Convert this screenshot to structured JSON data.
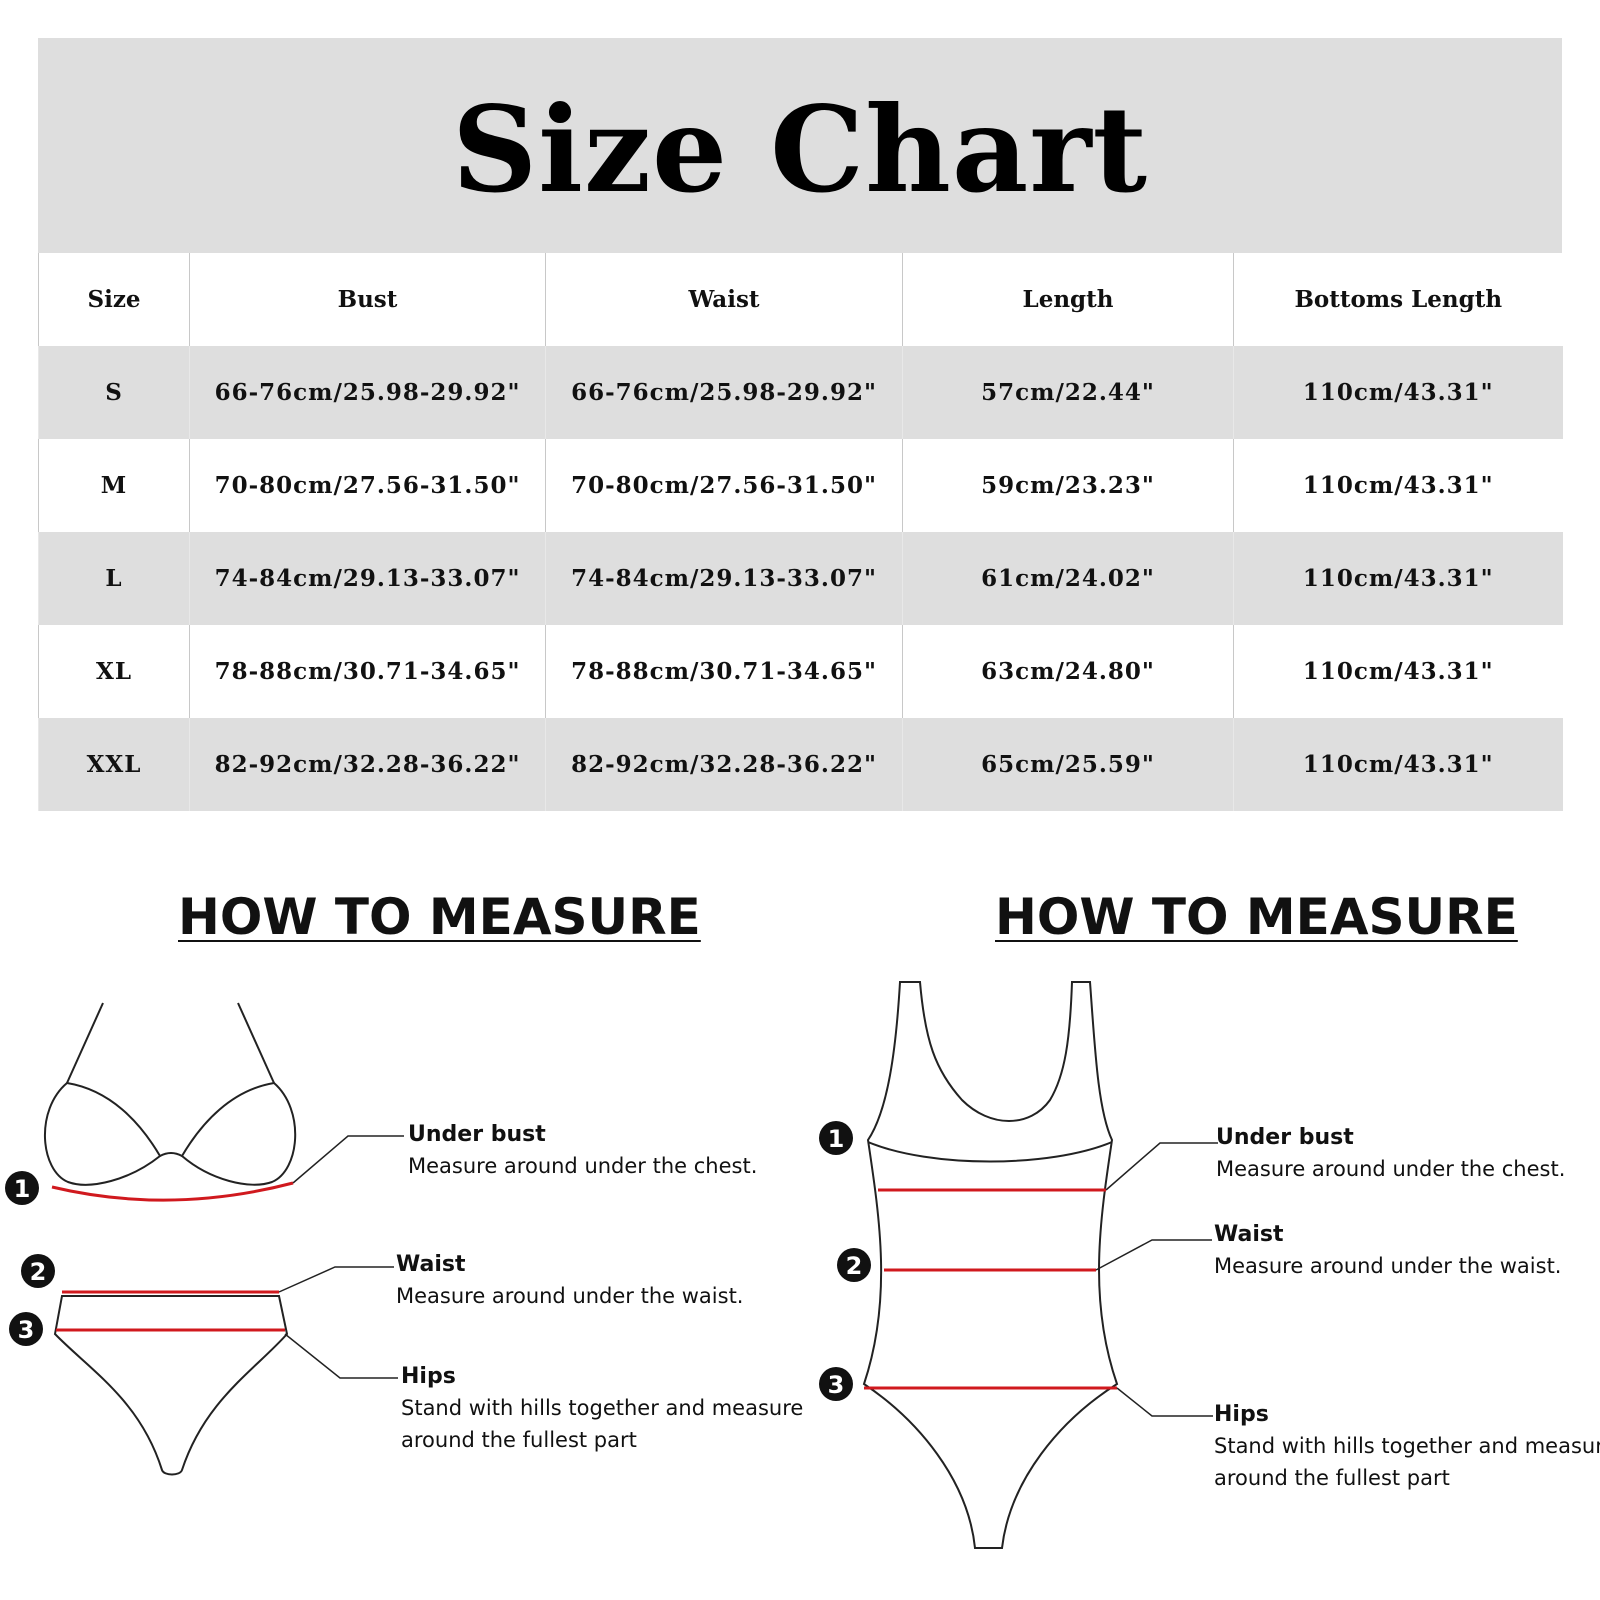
{
  "title": "Size Chart",
  "table": {
    "headers": [
      "Size",
      "Bust",
      "Waist",
      "Length",
      "Bottoms Length"
    ],
    "rows": [
      [
        "S",
        "66-76cm/25.98-29.92\"",
        "66-76cm/25.98-29.92\"",
        "57cm/22.44\"",
        "110cm/43.31\""
      ],
      [
        "M",
        "70-80cm/27.56-31.50\"",
        "70-80cm/27.56-31.50\"",
        "59cm/23.23\"",
        "110cm/43.31\""
      ],
      [
        "L",
        "74-84cm/29.13-33.07\"",
        "74-84cm/29.13-33.07\"",
        "61cm/24.02\"",
        "110cm/43.31\""
      ],
      [
        "XL",
        "78-88cm/30.71-34.65\"",
        "78-88cm/30.71-34.65\"",
        "63cm/24.80\"",
        "110cm/43.31\""
      ],
      [
        "XXL",
        "82-92cm/32.28-36.22\"",
        "82-92cm/32.28-36.22\"",
        "65cm/25.59\"",
        "110cm/43.31\""
      ]
    ]
  },
  "measure_left": {
    "title": "HOW TO MEASURE",
    "notes": [
      {
        "number": "1",
        "title": "Under bust",
        "desc": [
          "Measure around under the chest."
        ]
      },
      {
        "number": "2",
        "title": "Waist",
        "desc": [
          "Measure around under the waist."
        ]
      },
      {
        "number": "3",
        "title": "Hips",
        "desc": [
          "Stand with hills together and measure",
          "around  the fullest part"
        ]
      }
    ]
  },
  "measure_right": {
    "title": "HOW TO MEASURE",
    "notes": [
      {
        "number": "1",
        "title": "Under bust",
        "desc": [
          "Measure around under the chest."
        ]
      },
      {
        "number": "2",
        "title": "Waist",
        "desc": [
          "Measure around under the waist."
        ]
      },
      {
        "number": "3",
        "title": "Hips",
        "desc": [
          "Stand with hills together and measure",
          "around  the fullest part"
        ]
      }
    ]
  },
  "colors": {
    "header_bg": "#dedede",
    "measure_line": "#d0191e",
    "outline": "#222222"
  }
}
